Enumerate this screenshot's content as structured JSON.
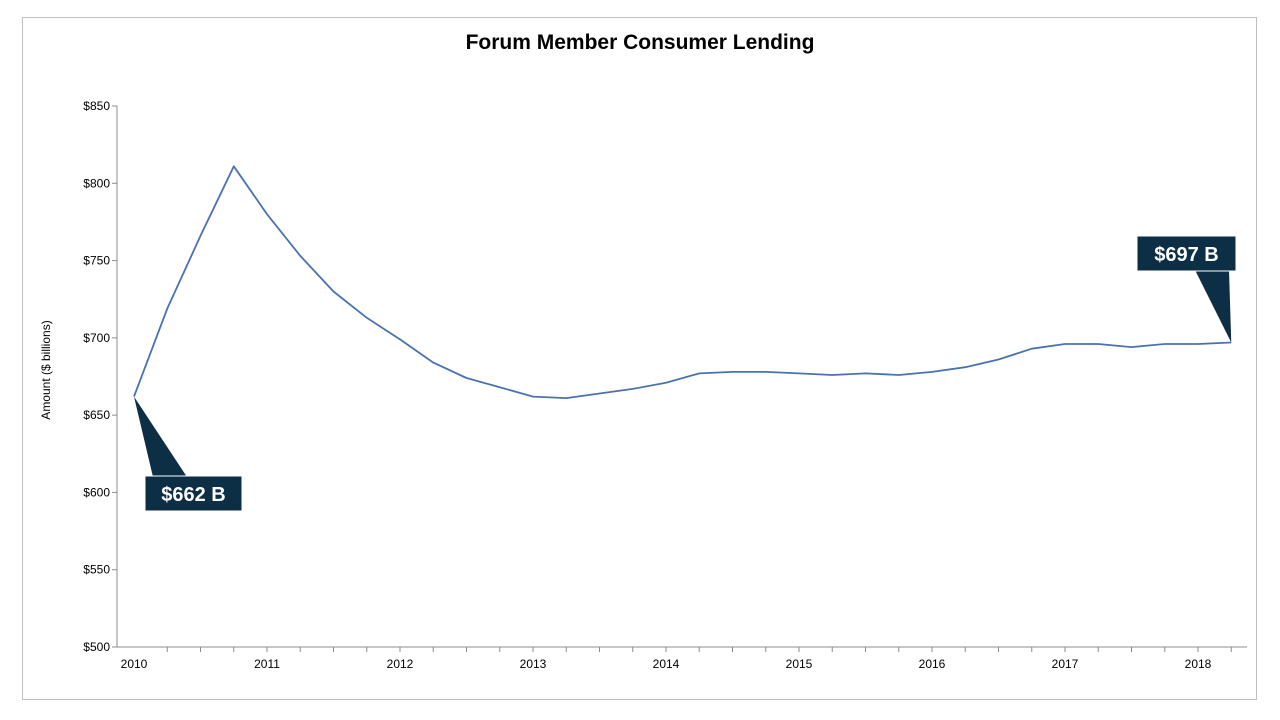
{
  "chart_data": {
    "type": "line",
    "title": "Forum Member Consumer Lending",
    "xlabel": "",
    "ylabel": "Amount ($ billions)",
    "ylim": [
      500,
      850
    ],
    "yticks": [
      {
        "value": 500,
        "label": "$500"
      },
      {
        "value": 550,
        "label": "$550"
      },
      {
        "value": 600,
        "label": "$600"
      },
      {
        "value": 650,
        "label": "$650"
      },
      {
        "value": 700,
        "label": "$700"
      },
      {
        "value": 750,
        "label": "$750"
      },
      {
        "value": 800,
        "label": "$800"
      },
      {
        "value": 850,
        "label": "$850"
      }
    ],
    "xlim": [
      2010.0,
      2018.5
    ],
    "xticks": [
      {
        "value": 2010,
        "label": "2010"
      },
      {
        "value": 2011,
        "label": "2011"
      },
      {
        "value": 2012,
        "label": "2012"
      },
      {
        "value": 2013,
        "label": "2013"
      },
      {
        "value": 2014,
        "label": "2014"
      },
      {
        "value": 2015,
        "label": "2015"
      },
      {
        "value": 2016,
        "label": "2016"
      },
      {
        "value": 2017,
        "label": "2017"
      },
      {
        "value": 2018,
        "label": "2018"
      }
    ],
    "grid": false,
    "line_color": "#4a72b0",
    "callout_color": "#0d2f45",
    "series": [
      {
        "x": [
          2010.0,
          2010.25,
          2010.5,
          2010.75,
          2011.0,
          2011.25,
          2011.5,
          2011.75,
          2012.0,
          2012.25,
          2012.5,
          2012.75,
          2013.0,
          2013.25,
          2013.5,
          2013.75,
          2014.0,
          2014.25,
          2014.5,
          2014.75,
          2015.0,
          2015.25,
          2015.5,
          2015.75,
          2016.0,
          2016.25,
          2016.5,
          2016.75,
          2017.0,
          2017.25,
          2017.5,
          2017.75,
          2018.0,
          2018.25
        ],
        "values": [
          662,
          719,
          766,
          811,
          780,
          753,
          730,
          713,
          699,
          684,
          674,
          668,
          662,
          661,
          664,
          667,
          671,
          677,
          678,
          678,
          677,
          676,
          677,
          676,
          678,
          681,
          686,
          693,
          696,
          696,
          694,
          696,
          696,
          697
        ]
      }
    ],
    "annotations": [
      {
        "text": "$662 B",
        "x": 2010.0,
        "y": 662
      },
      {
        "text": "$697 B",
        "x": 2018.25,
        "y": 697
      }
    ]
  }
}
